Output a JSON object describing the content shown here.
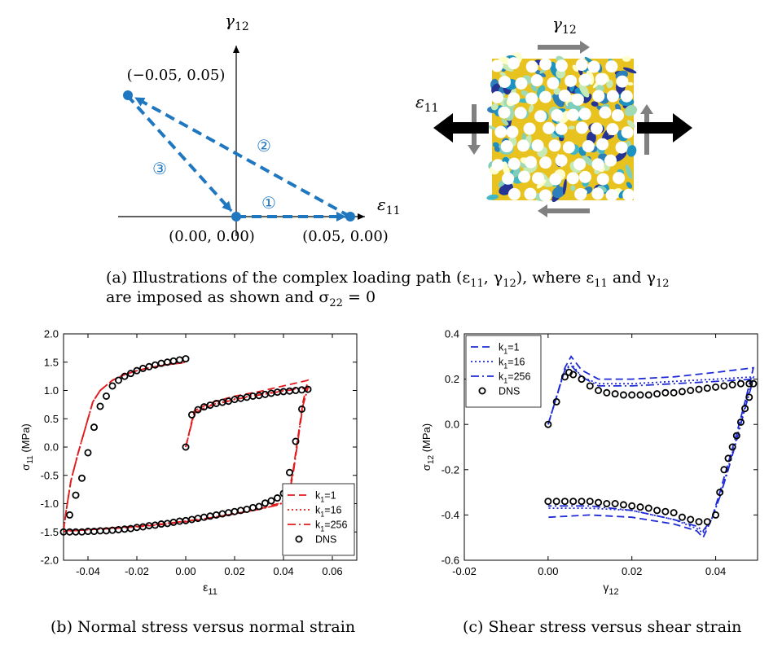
{
  "panel_a": {
    "left": {
      "y_axis_label": "γ",
      "y_axis_sub": "12",
      "x_axis_label": "ε",
      "x_axis_sub": "11",
      "points": [
        {
          "label": "(−0.05, 0.05)",
          "e11": -0.05,
          "g12": 0.05
        },
        {
          "label": "(0.00, 0.00)",
          "e11": 0.0,
          "g12": 0.0
        },
        {
          "label": "(0.05, 0.00)",
          "e11": 0.05,
          "g12": 0.0
        }
      ],
      "path_steps": [
        "①",
        "②",
        "③"
      ],
      "color": "#1f77c0"
    },
    "right": {
      "top_label": "γ",
      "top_sub": "12",
      "left_label": "ε",
      "left_sub": "11"
    }
  },
  "captions": {
    "a_line1": "(a) Illustrations of the complex loading path (ε",
    "a_line1_sub1": "11",
    "a_line1_mid": ", γ",
    "a_line1_sub2": "12",
    "a_line1_tail": "), where ε",
    "a_line1_sub3": "11",
    "a_line1_and": " and γ",
    "a_line1_sub4": "12",
    "a_line2": "are imposed as shown and σ",
    "a_line2_sub": "22",
    "a_line2_tail": " = 0",
    "b": "(b) Normal stress versus normal strain",
    "c": "(c) Shear stress versus shear strain"
  },
  "chart_data": [
    {
      "type": "line",
      "xlabel": "ε",
      "xlabel_sub": "11",
      "ylabel": "σ",
      "ylabel_sub": "11",
      "ylabel_unit": " (MPa)",
      "xlim": [
        -0.05,
        0.07
      ],
      "ylim": [
        -2.0,
        2.0
      ],
      "xticks": [
        -0.04,
        -0.02,
        0.0,
        0.02,
        0.04,
        0.06
      ],
      "xtick_labels": [
        "-0.04",
        "-0.02",
        "0.00",
        "0.02",
        "0.04",
        "0.06"
      ],
      "yticks": [
        -2.0,
        -1.5,
        -1.0,
        -0.5,
        0.0,
        0.5,
        1.0,
        1.5,
        2.0
      ],
      "ytick_labels": [
        "-2.0",
        "-1.5",
        "-1.0",
        "-0.5",
        "0.0",
        "0.5",
        "1.0",
        "1.5",
        "2.0"
      ],
      "legend_position": "bottom-right",
      "color": "#e31a1c",
      "series": [
        {
          "name": "k_1=1",
          "label_main": "k",
          "label_sub": "1",
          "label_tail": "=1",
          "style": "dash",
          "x": [
            0.0,
            0.0035,
            0.01,
            0.02,
            0.03,
            0.04,
            0.045,
            0.05,
            0.048,
            0.046,
            0.044,
            0.042,
            0.04,
            0.038,
            0.035,
            0.03,
            0.02,
            0.01,
            0.0,
            -0.01,
            -0.02,
            -0.03,
            -0.04,
            -0.05,
            -0.049,
            -0.047,
            -0.044,
            -0.041,
            -0.038,
            -0.035,
            -0.03,
            -0.025,
            -0.02,
            -0.015,
            -0.01,
            -0.005,
            0.0
          ],
          "y": [
            0.0,
            0.64,
            0.78,
            0.9,
            0.98,
            1.08,
            1.13,
            1.18,
            0.8,
            0.2,
            -0.4,
            -0.85,
            -0.95,
            -1.0,
            -1.03,
            -1.1,
            -1.18,
            -1.26,
            -1.32,
            -1.37,
            -1.41,
            -1.44,
            -1.46,
            -1.48,
            -1.15,
            -0.6,
            -0.1,
            0.35,
            0.8,
            1.0,
            1.18,
            1.28,
            1.35,
            1.4,
            1.44,
            1.47,
            1.49
          ]
        },
        {
          "name": "k_1=16",
          "label_main": "k",
          "label_sub": "1",
          "label_tail": "=16",
          "style": "dot",
          "x": [
            0.0,
            0.0035,
            0.01,
            0.02,
            0.03,
            0.04,
            0.045,
            0.05,
            0.048,
            0.046,
            0.044,
            0.042,
            0.04,
            0.038,
            0.035,
            0.03,
            0.02,
            0.01,
            0.0,
            -0.01,
            -0.02,
            -0.03,
            -0.04,
            -0.05,
            -0.049,
            -0.047,
            -0.044,
            -0.041,
            -0.038,
            -0.035,
            -0.03,
            -0.025,
            -0.02,
            -0.015,
            -0.01,
            -0.005,
            0.0
          ],
          "y": [
            0.0,
            0.6,
            0.74,
            0.85,
            0.93,
            1.0,
            1.03,
            1.05,
            0.75,
            0.15,
            -0.45,
            -0.88,
            -0.97,
            -1.02,
            -1.05,
            -1.1,
            -1.18,
            -1.25,
            -1.31,
            -1.36,
            -1.4,
            -1.43,
            -1.46,
            -1.49,
            -1.15,
            -0.6,
            -0.1,
            0.35,
            0.8,
            1.0,
            1.18,
            1.28,
            1.35,
            1.4,
            1.44,
            1.47,
            1.5
          ]
        },
        {
          "name": "k_1=256",
          "label_main": "k",
          "label_sub": "1",
          "label_tail": "=256",
          "style": "dashdot",
          "x": [
            0.0,
            0.0035,
            0.01,
            0.02,
            0.03,
            0.04,
            0.045,
            0.05,
            0.048,
            0.046,
            0.044,
            0.042,
            0.04,
            0.038,
            0.035,
            0.03,
            0.02,
            0.01,
            0.0,
            -0.01,
            -0.02,
            -0.03,
            -0.04,
            -0.05,
            -0.049,
            -0.047,
            -0.044,
            -0.041,
            -0.038,
            -0.035,
            -0.03,
            -0.025,
            -0.02,
            -0.015,
            -0.01,
            -0.005,
            0.0
          ],
          "y": [
            0.0,
            0.6,
            0.73,
            0.84,
            0.92,
            0.99,
            1.02,
            1.04,
            0.74,
            0.14,
            -0.46,
            -0.89,
            -0.98,
            -1.02,
            -1.05,
            -1.1,
            -1.18,
            -1.25,
            -1.31,
            -1.36,
            -1.4,
            -1.43,
            -1.46,
            -1.49,
            -1.15,
            -0.6,
            -0.1,
            0.35,
            0.8,
            1.0,
            1.18,
            1.28,
            1.35,
            1.4,
            1.44,
            1.47,
            1.5
          ]
        },
        {
          "name": "DNS",
          "label_main": "DNS",
          "label_sub": "",
          "label_tail": "",
          "style": "marker",
          "x": [
            0.0,
            0.0025,
            0.005,
            0.0075,
            0.01,
            0.0125,
            0.015,
            0.0175,
            0.02,
            0.0225,
            0.025,
            0.0275,
            0.03,
            0.0325,
            0.035,
            0.0375,
            0.04,
            0.0425,
            0.045,
            0.0475,
            0.05,
            0.0475,
            0.045,
            0.0425,
            0.04,
            0.0375,
            0.035,
            0.0325,
            0.03,
            0.0275,
            0.025,
            0.0225,
            0.02,
            0.0175,
            0.015,
            0.0125,
            0.01,
            0.0075,
            0.005,
            0.0025,
            0.0,
            -0.0025,
            -0.005,
            -0.0075,
            -0.01,
            -0.0125,
            -0.015,
            -0.0175,
            -0.02,
            -0.0225,
            -0.025,
            -0.0275,
            -0.03,
            -0.0325,
            -0.035,
            -0.0375,
            -0.04,
            -0.0425,
            -0.045,
            -0.0475,
            -0.05,
            -0.0475,
            -0.045,
            -0.0425,
            -0.04,
            -0.0375,
            -0.035,
            -0.0325,
            -0.03,
            -0.0275,
            -0.025,
            -0.0225,
            -0.02,
            -0.0175,
            -0.015,
            -0.0125,
            -0.01,
            -0.0075,
            -0.005,
            -0.0025,
            0.0
          ],
          "y": [
            0.0,
            0.57,
            0.66,
            0.71,
            0.74,
            0.77,
            0.79,
            0.81,
            0.84,
            0.86,
            0.88,
            0.9,
            0.91,
            0.93,
            0.95,
            0.97,
            0.98,
            0.99,
            1.0,
            1.01,
            1.02,
            0.67,
            0.1,
            -0.45,
            -0.82,
            -0.9,
            -0.95,
            -0.99,
            -1.05,
            -1.07,
            -1.1,
            -1.12,
            -1.14,
            -1.16,
            -1.18,
            -1.2,
            -1.22,
            -1.24,
            -1.26,
            -1.28,
            -1.3,
            -1.31,
            -1.33,
            -1.35,
            -1.36,
            -1.38,
            -1.39,
            -1.41,
            -1.42,
            -1.44,
            -1.45,
            -1.46,
            -1.47,
            -1.48,
            -1.48,
            -1.49,
            -1.49,
            -1.5,
            -1.5,
            -1.5,
            -1.5,
            -1.2,
            -0.85,
            -0.55,
            -0.1,
            0.35,
            0.72,
            0.9,
            1.08,
            1.18,
            1.25,
            1.3,
            1.35,
            1.39,
            1.42,
            1.45,
            1.48,
            1.5,
            1.52,
            1.54,
            1.56
          ]
        }
      ]
    },
    {
      "type": "line",
      "xlabel": "γ",
      "xlabel_sub": "12",
      "ylabel": "σ",
      "ylabel_sub": "12",
      "ylabel_unit": " (MPa)",
      "xlim": [
        -0.02,
        0.05
      ],
      "ylim": [
        -0.6,
        0.4
      ],
      "xticks": [
        -0.02,
        0.0,
        0.02,
        0.04
      ],
      "xtick_labels": [
        "-0.02",
        "0.00",
        "0.02",
        "0.04"
      ],
      "yticks": [
        -0.6,
        -0.4,
        -0.2,
        0.0,
        0.2,
        0.4
      ],
      "ytick_labels": [
        "-0.6",
        "-0.4",
        "-0.2",
        "0.0",
        "0.2",
        "0.4"
      ],
      "legend_position": "top-left",
      "color": "#1f2bd6",
      "series": [
        {
          "name": "k_1=1",
          "label_main": "k",
          "label_sub": "1",
          "label_tail": "=1",
          "style": "dash",
          "x": [
            0.0,
            0.002,
            0.004,
            0.0055,
            0.008,
            0.012,
            0.02,
            0.03,
            0.04,
            0.049,
            0.047,
            0.045,
            0.043,
            0.041,
            0.039,
            0.037,
            0.0355,
            0.03,
            0.02,
            0.01,
            0.0
          ],
          "y": [
            0.0,
            0.12,
            0.25,
            0.3,
            0.24,
            0.2,
            0.2,
            0.21,
            0.23,
            0.25,
            0.1,
            -0.04,
            -0.17,
            -0.3,
            -0.42,
            -0.5,
            -0.47,
            -0.44,
            -0.41,
            -0.4,
            -0.41
          ]
        },
        {
          "name": "k_1=16",
          "label_main": "k",
          "label_sub": "1",
          "label_tail": "=16",
          "style": "dot",
          "x": [
            0.0,
            0.002,
            0.004,
            0.0055,
            0.008,
            0.012,
            0.02,
            0.03,
            0.04,
            0.049,
            0.047,
            0.045,
            0.043,
            0.041,
            0.039,
            0.037,
            0.0355,
            0.03,
            0.02,
            0.01,
            0.0
          ],
          "y": [
            0.0,
            0.12,
            0.24,
            0.27,
            0.21,
            0.18,
            0.18,
            0.19,
            0.2,
            0.21,
            0.08,
            -0.06,
            -0.19,
            -0.32,
            -0.42,
            -0.48,
            -0.46,
            -0.42,
            -0.38,
            -0.37,
            -0.37
          ]
        },
        {
          "name": "k_1=256",
          "label_main": "k",
          "label_sub": "1",
          "label_tail": "=256",
          "style": "dashdot",
          "x": [
            0.0,
            0.002,
            0.004,
            0.0055,
            0.008,
            0.012,
            0.02,
            0.03,
            0.04,
            0.049,
            0.047,
            0.045,
            0.043,
            0.041,
            0.039,
            0.037,
            0.0355,
            0.03,
            0.02,
            0.01,
            0.0
          ],
          "y": [
            0.0,
            0.12,
            0.24,
            0.26,
            0.21,
            0.17,
            0.17,
            0.18,
            0.19,
            0.2,
            0.07,
            -0.07,
            -0.2,
            -0.32,
            -0.42,
            -0.47,
            -0.45,
            -0.42,
            -0.38,
            -0.36,
            -0.36
          ]
        },
        {
          "name": "DNS",
          "label_main": "DNS",
          "label_sub": "",
          "label_tail": "",
          "style": "marker",
          "x": [
            0.0,
            0.002,
            0.004,
            0.005,
            0.006,
            0.008,
            0.01,
            0.012,
            0.014,
            0.016,
            0.018,
            0.02,
            0.022,
            0.024,
            0.026,
            0.028,
            0.03,
            0.032,
            0.034,
            0.036,
            0.038,
            0.04,
            0.042,
            0.044,
            0.046,
            0.048,
            0.049,
            0.048,
            0.047,
            0.046,
            0.045,
            0.044,
            0.043,
            0.042,
            0.041,
            0.04,
            0.038,
            0.036,
            0.034,
            0.032,
            0.03,
            0.028,
            0.026,
            0.024,
            0.022,
            0.02,
            0.018,
            0.016,
            0.014,
            0.012,
            0.01,
            0.008,
            0.006,
            0.004,
            0.002,
            0.0
          ],
          "y": [
            0.0,
            0.1,
            0.21,
            0.23,
            0.22,
            0.2,
            0.17,
            0.15,
            0.14,
            0.135,
            0.13,
            0.13,
            0.13,
            0.13,
            0.135,
            0.14,
            0.14,
            0.145,
            0.15,
            0.155,
            0.16,
            0.165,
            0.17,
            0.175,
            0.18,
            0.18,
            0.18,
            0.12,
            0.07,
            0.01,
            -0.05,
            -0.1,
            -0.15,
            -0.2,
            -0.3,
            -0.4,
            -0.43,
            -0.43,
            -0.42,
            -0.41,
            -0.39,
            -0.385,
            -0.38,
            -0.37,
            -0.365,
            -0.36,
            -0.355,
            -0.35,
            -0.35,
            -0.345,
            -0.34,
            -0.34,
            -0.34,
            -0.34,
            -0.34,
            -0.34
          ]
        }
      ]
    }
  ]
}
